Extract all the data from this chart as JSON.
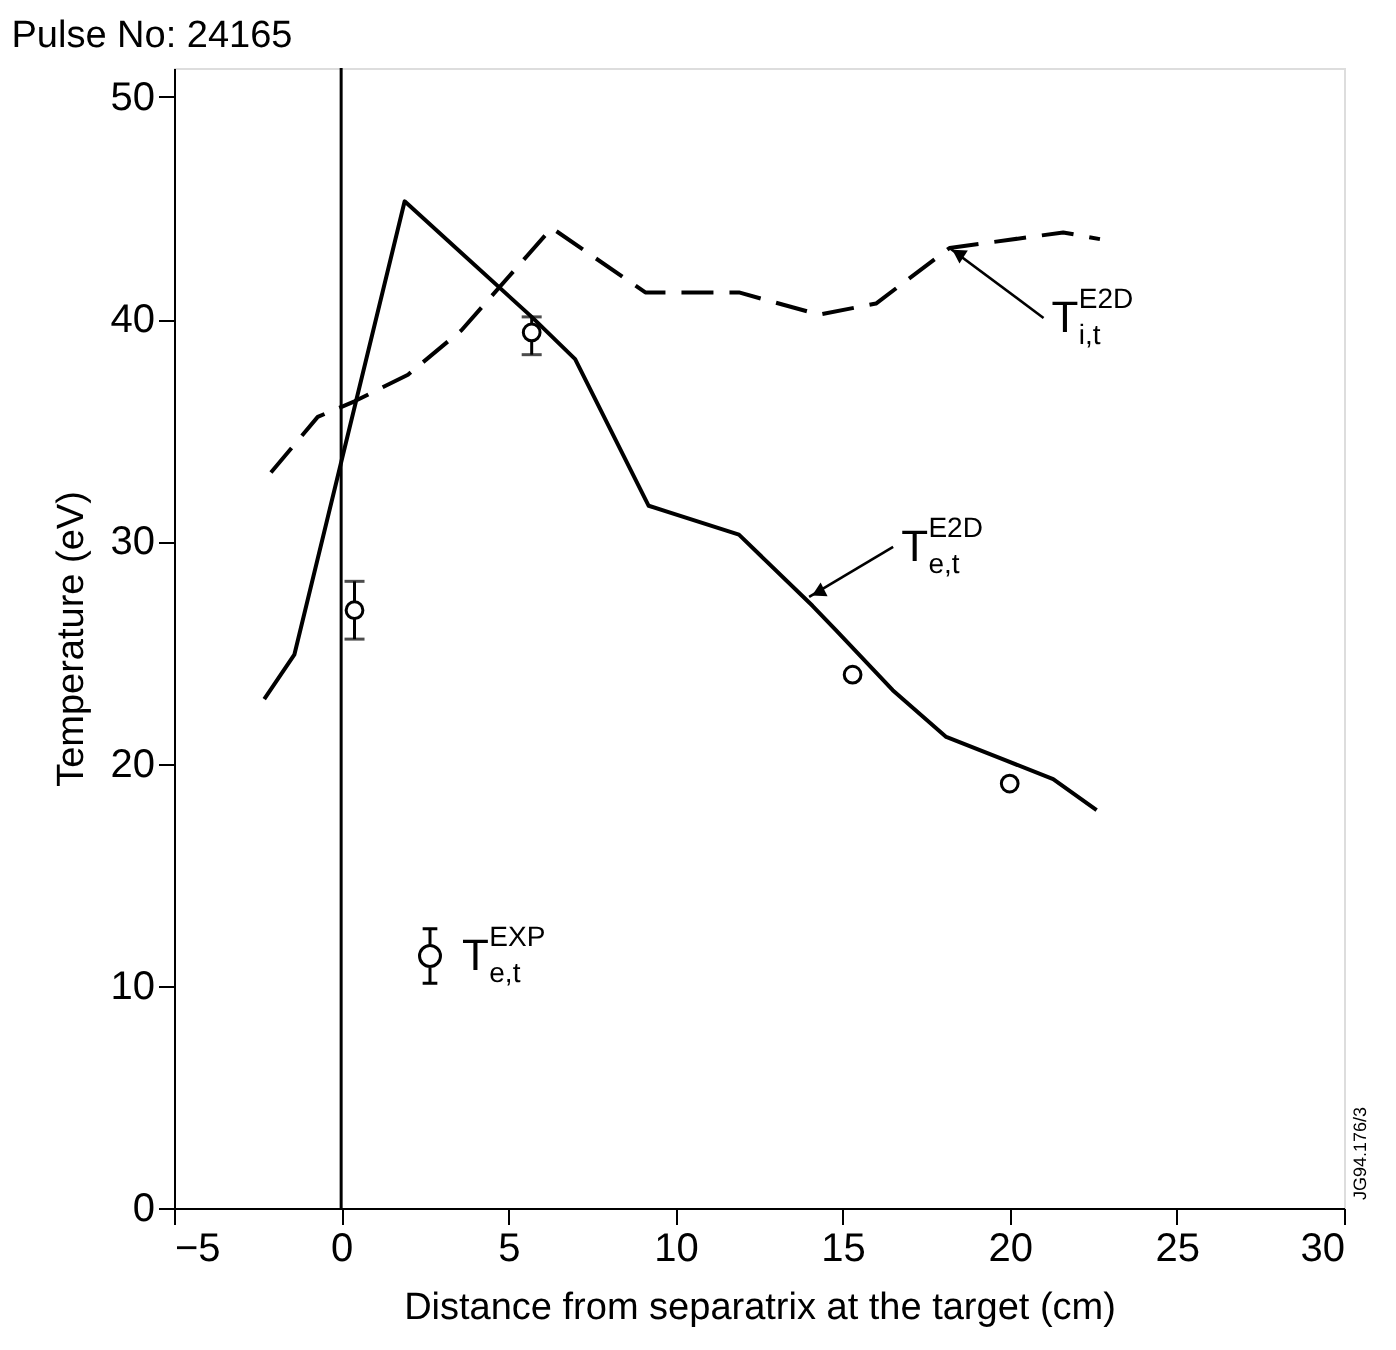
{
  "chart_data": {
    "type": "line",
    "title": "Pulse No: 24165",
    "xlabel": "Distance from separatrix at the target (cm)",
    "ylabel": "Temperature (eV)",
    "xlim": [
      -5,
      30
    ],
    "xticks": [
      -5,
      0,
      5,
      10,
      15,
      20,
      25,
      30
    ],
    "ylim": [
      0,
      51.3
    ],
    "yticks": [
      0,
      10,
      20,
      30,
      40,
      50
    ],
    "grid": false,
    "legend": "bottom left",
    "series": [
      {
        "line_style": "dashed",
        "color": "#000000",
        "x": [
          -2.1,
          -0.7,
          0.4,
          2.0,
          3.6,
          6.3,
          9.1,
          11.9,
          14.3,
          16.0,
          18.2,
          21.6,
          22.7
        ],
        "values": [
          33.1,
          35.6,
          36.3,
          37.5,
          39.5,
          44.1,
          41.2,
          41.2,
          40.2,
          40.7,
          43.2,
          43.9,
          43.6
        ]
      },
      {
        "line_style": "solid",
        "color": "#000000",
        "x": [
          -2.3,
          -1.4,
          1.9,
          5.7,
          7.0,
          9.2,
          11.9,
          14.1,
          14.8,
          16.5,
          18.1,
          21.3,
          22.6
        ],
        "values": [
          22.9,
          24.9,
          45.3,
          40.1,
          38.2,
          31.6,
          30.3,
          27.1,
          26.0,
          23.3,
          21.2,
          19.3,
          17.9
        ]
      },
      {
        "type": "scatter",
        "name": "T$^{EXP}$$_{e,t}$",
        "marker": "circle",
        "color": "#000000",
        "x": [
          0.4,
          5.7,
          15.3,
          20.0
        ],
        "values": [
          26.9,
          39.4,
          24.0,
          19.1
        ],
        "errors": [
          [
            25.6,
            28.2
          ],
          [
            38.4,
            40.1
          ],
          null,
          null
        ]
      }
    ],
    "ref_lines": [
      {
        "axis": "x",
        "value": 0,
        "color": "#000000",
        "line_style": "solid"
      }
    ],
    "annotations": [
      {
        "text": "T$^{E2D}$$_{i,t}$",
        "x": 18.2,
        "y": 43.2
      },
      {
        "text": "T$^{E2D}$$_{e,t}$",
        "x": 14.0,
        "y": 27.5
      },
      "JG94.176/3"
    ]
  }
}
